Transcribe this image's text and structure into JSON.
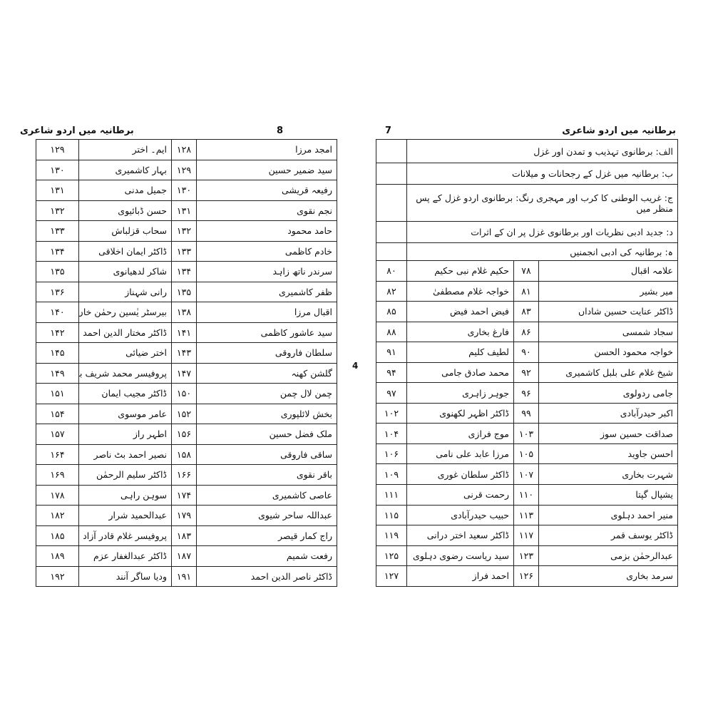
{
  "left_page": {
    "header_title": "برطانیہ میں اردو شاعری",
    "page_number": "8",
    "rows": [
      [
        "امجد مرزا",
        "۱۲۸",
        "ایم۔ اختر",
        "۱۲۹"
      ],
      [
        "سید ضمیر حسین",
        "۱۲۹",
        "بہار کاشمیری",
        "۱۳۰"
      ],
      [
        "رفیعہ قریشی",
        "۱۳۰",
        "جمیل مدنی",
        "۱۳۱"
      ],
      [
        "نجم نقوی",
        "۱۳۱",
        "حسن ڈبائیوی",
        "۱۳۲"
      ],
      [
        "حامد محمود",
        "۱۳۲",
        "سحاب قزلباش",
        "۱۳۳"
      ],
      [
        "خادم کاظمی",
        "۱۳۳",
        "ڈاکٹر ایمان اخلاقی",
        "۱۳۴"
      ],
      [
        "سرندر ناتھ زاہد",
        "۱۳۴",
        "شاکر لدھیانوی",
        "۱۳۵"
      ],
      [
        "ظفر کاشمیری",
        "۱۳۵",
        "رانی شہناز",
        "۱۳۶"
      ],
      [
        "اقبال مرزا",
        "۱۳۸",
        "بیرسٹر یٰسین رحمٰن خاں بے تاب سوری",
        "۱۴۰"
      ],
      [
        "سید عاشور کاظمی",
        "۱۴۱",
        "ڈاکٹر مختار الدین احمد",
        "۱۴۲"
      ],
      [
        "سلطان فاروقی",
        "۱۴۳",
        "اختر ضیائی",
        "۱۴۵"
      ],
      [
        "گلشن کھنہ",
        "۱۴۷",
        "پروفیسر محمد شریف بقا",
        "۱۴۹"
      ],
      [
        "چمن لال چمن",
        "۱۵۰",
        "ڈاکٹر مجیب ایمان",
        "۱۵۱"
      ],
      [
        "بخش لائلپوری",
        "۱۵۲",
        "عامر موسوی",
        "۱۵۴"
      ],
      [
        "ملک فضل حسین",
        "۱۵۶",
        "اطہر راز",
        "۱۵۷"
      ],
      [
        "ساقی فاروقی",
        "۱۵۸",
        "نصیر احمد بٹ ناصر",
        "۱۶۴"
      ],
      [
        "باقر نقوی",
        "۱۶۶",
        "ڈاکٹر سلیم الرحمٰن",
        "۱۶۹"
      ],
      [
        "عاصی کاشمیری",
        "۱۷۴",
        "سوہن راہی",
        "۱۷۸"
      ],
      [
        "عبداللہ ساحر شیوی",
        "۱۷۹",
        "عبدالحمید شرار",
        "۱۸۲"
      ],
      [
        "راج کمار قیصر",
        "۱۸۳",
        "پروفیسر غلام قادر آزاد",
        "۱۸۵"
      ],
      [
        "رفعت شمیم",
        "۱۸۷",
        "ڈاکٹر عبدالغفار عزم",
        "۱۸۹"
      ],
      [
        "ڈاکٹر ناصر الدین احمد",
        "۱۹۱",
        "ودیا ساگر آنند",
        "۱۹۲"
      ]
    ]
  },
  "right_page": {
    "header_title": "برطانیہ میں اردو شاعری",
    "page_number": "7",
    "sections": [
      "الف: برطانوی تہذیب و تمدن اور غزل",
      "ب: برطانیہ میں غزل کے رجحانات و میلانات",
      "ج: غریب الوطنی کا کرب اور مہجری رنگ: برطانوی اردو غزل کے پس منظر میں",
      "د: جدید ادبی نظریات اور برطانوی غزل پر ان کے اثرات",
      "ہ: برطانیہ کی ادبی انجمنیں"
    ],
    "rows": [
      [
        "علامہ اقبال",
        "۷۸",
        "حکیم غلام نبی حکیم",
        "۸۰"
      ],
      [
        "میر بشیر",
        "۸۱",
        "خواجہ غلام مصطفیٰ",
        "۸۲"
      ],
      [
        "ڈاکٹر عنایت حسین شاداں",
        "۸۳",
        "فیض احمد فیض",
        "۸۵"
      ],
      [
        "سجاد شمسی",
        "۸۶",
        "فارغ بخاری",
        "۸۸"
      ],
      [
        "خواجہ محمود الحسن",
        "۹۰",
        "لطیف کلیم",
        "۹۱"
      ],
      [
        "شیخ غلام علی بلبل کاشمیری",
        "۹۲",
        "محمد صادق جامی",
        "۹۴"
      ],
      [
        "جامی ردولوی",
        "۹۶",
        "جوہر زاہری",
        "۹۷"
      ],
      [
        "اکبر حیدرآبادی",
        "۹۹",
        "ڈاکٹر اظہر لکھنوی",
        "۱۰۲"
      ],
      [
        "صداقت حسین سوز",
        "۱۰۳",
        "موج فرازی",
        "۱۰۴"
      ],
      [
        "احسن جاوید",
        "۱۰۵",
        "مرزا عابد علی نامی",
        "۱۰۶"
      ],
      [
        "شہرت بخاری",
        "۱۰۷",
        "ڈاکٹر سلطان غوری",
        "۱۰۹"
      ],
      [
        "یشپال گپتا",
        "۱۱۰",
        "رحمت قرنی",
        "۱۱۱"
      ],
      [
        "منیر احمد دہلوی",
        "۱۱۳",
        "حبیب حیدرآبادی",
        "۱۱۵"
      ],
      [
        "ڈاکٹر یوسف قمر",
        "۱۱۷",
        "ڈاکٹر سعید اختر درانی",
        "۱۱۹"
      ],
      [
        "عبدالرحمٰن بزمی",
        "۱۲۳",
        "سید ریاست رضوی دہلوی",
        "۱۲۵"
      ],
      [
        "سرمد بخاری",
        "۱۲۶",
        "احمد فراز",
        "۱۲۷"
      ]
    ]
  },
  "center_number": "4"
}
